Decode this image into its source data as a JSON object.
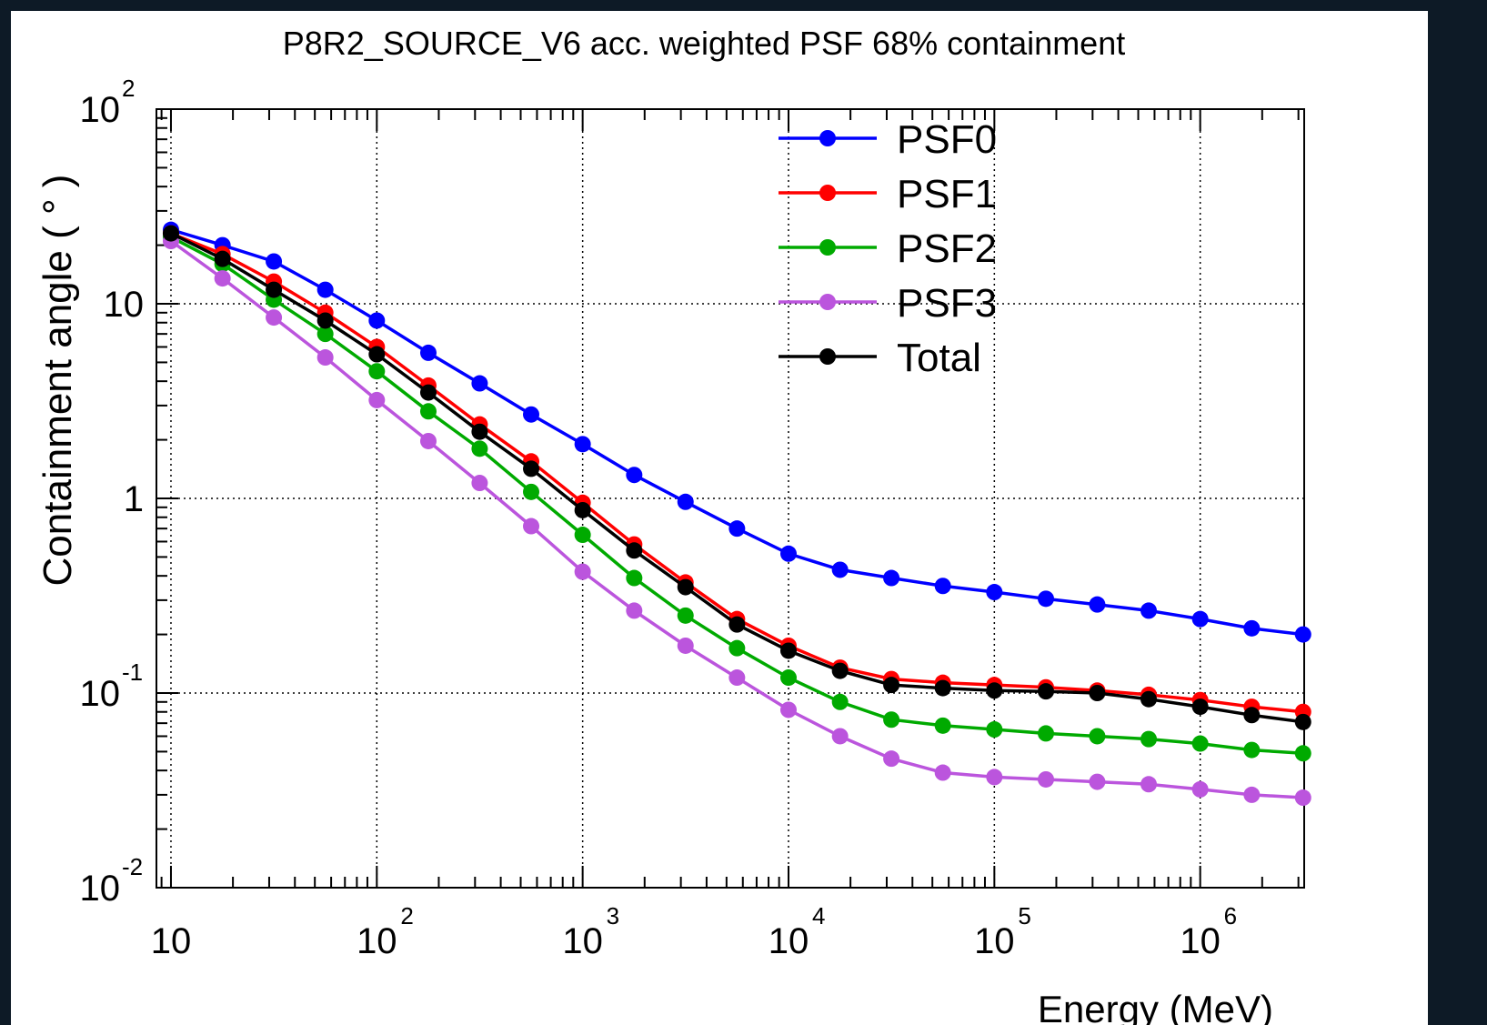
{
  "chart_data": {
    "type": "line",
    "title": "P8R2_SOURCE_V6 acc. weighted PSF 68% containment",
    "xlabel": "Energy (MeV)",
    "ylabel": "Containment angle ( ° )",
    "xscale": "log",
    "yscale": "log",
    "xlim": [
      8.5,
      3200000
    ],
    "ylim": [
      0.01,
      100
    ],
    "grid": true,
    "legend_position": "top-right",
    "x_ticks": [
      {
        "base": "10",
        "exp": ""
      },
      {
        "base": "10",
        "exp": "2"
      },
      {
        "base": "10",
        "exp": "3"
      },
      {
        "base": "10",
        "exp": "4"
      },
      {
        "base": "10",
        "exp": "5"
      },
      {
        "base": "10",
        "exp": "6"
      }
    ],
    "y_ticks": [
      {
        "base": "10",
        "exp": "-2"
      },
      {
        "base": "10",
        "exp": "-1"
      },
      {
        "base": "1",
        "exp": ""
      },
      {
        "base": "10",
        "exp": ""
      },
      {
        "base": "10",
        "exp": "2"
      }
    ],
    "x": [
      10,
      17.8,
      31.6,
      56.2,
      100,
      178,
      316,
      562,
      1000,
      1780,
      3160,
      5620,
      10000,
      17800,
      31600,
      56200,
      100000,
      178000,
      316000,
      562000,
      1000000,
      1780000,
      3160000
    ],
    "series": [
      {
        "name": "PSF0",
        "color": "#0000ff",
        "values": [
          24,
          20,
          16.5,
          11.8,
          8.2,
          5.6,
          3.9,
          2.7,
          1.9,
          1.32,
          0.96,
          0.7,
          0.52,
          0.43,
          0.39,
          0.355,
          0.33,
          0.305,
          0.285,
          0.265,
          0.24,
          0.215,
          0.2
        ]
      },
      {
        "name": "PSF1",
        "color": "#ff0000",
        "values": [
          23,
          18,
          13,
          9,
          6,
          3.8,
          2.4,
          1.55,
          0.95,
          0.58,
          0.37,
          0.24,
          0.175,
          0.135,
          0.118,
          0.113,
          0.11,
          0.107,
          0.103,
          0.098,
          0.092,
          0.085,
          0.08
        ]
      },
      {
        "name": "PSF2",
        "color": "#00aa00",
        "values": [
          22,
          16,
          10.5,
          7,
          4.5,
          2.8,
          1.8,
          1.08,
          0.65,
          0.39,
          0.25,
          0.17,
          0.12,
          0.09,
          0.073,
          0.068,
          0.065,
          0.062,
          0.06,
          0.058,
          0.055,
          0.051,
          0.049
        ]
      },
      {
        "name": "PSF3",
        "color": "#bb55dd",
        "values": [
          21,
          13.5,
          8.5,
          5.3,
          3.2,
          1.97,
          1.2,
          0.72,
          0.42,
          0.265,
          0.175,
          0.12,
          0.082,
          0.06,
          0.046,
          0.039,
          0.037,
          0.036,
          0.035,
          0.034,
          0.032,
          0.03,
          0.029
        ]
      },
      {
        "name": "Total",
        "color": "#000000",
        "values": [
          23,
          17,
          11.8,
          8.2,
          5.5,
          3.5,
          2.2,
          1.42,
          0.87,
          0.54,
          0.35,
          0.225,
          0.165,
          0.13,
          0.11,
          0.106,
          0.103,
          0.102,
          0.1,
          0.093,
          0.085,
          0.077,
          0.071
        ]
      }
    ]
  }
}
